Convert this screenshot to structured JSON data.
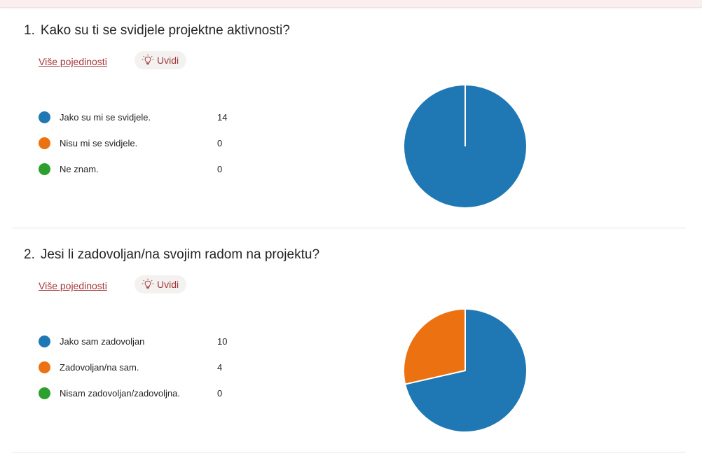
{
  "colors": {
    "accent": "#a4373a",
    "series": [
      "#1f77b4",
      "#ec7211",
      "#2ca02c"
    ]
  },
  "questions": [
    {
      "number": "1.",
      "title": "Kako su ti se svidjele projektne aktivnosti?",
      "details_link": "Više pojedinosti",
      "insights_label": "Uvidi",
      "insights_icon": "lightbulb-icon",
      "options": [
        {
          "label": "Jako su mi se svidjele.",
          "count": "14"
        },
        {
          "label": "Nisu mi se svidjele.",
          "count": "0"
        },
        {
          "label": "Ne znam.",
          "count": "0"
        }
      ]
    },
    {
      "number": "2.",
      "title": "Jesi li zadovoljan/na svojim radom na projektu?",
      "details_link": "Više pojedinosti",
      "insights_label": "Uvidi",
      "insights_icon": "lightbulb-icon",
      "options": [
        {
          "label": "Jako sam zadovoljan",
          "count": "10"
        },
        {
          "label": "Zadovoljan/na sam.",
          "count": "4"
        },
        {
          "label": "Nisam zadovoljan/zadovoljna.",
          "count": "0"
        }
      ]
    }
  ],
  "chart_data": [
    {
      "type": "pie",
      "categories": [
        "Jako su mi se svidjele.",
        "Nisu mi se svidjele.",
        "Ne znam."
      ],
      "values": [
        14,
        0,
        0
      ],
      "colors": [
        "#1f77b4",
        "#ec7211",
        "#2ca02c"
      ]
    },
    {
      "type": "pie",
      "categories": [
        "Jako sam zadovoljan",
        "Zadovoljan/na sam.",
        "Nisam zadovoljan/zadovoljna."
      ],
      "values": [
        10,
        4,
        0
      ],
      "colors": [
        "#1f77b4",
        "#ec7211",
        "#2ca02c"
      ]
    }
  ]
}
